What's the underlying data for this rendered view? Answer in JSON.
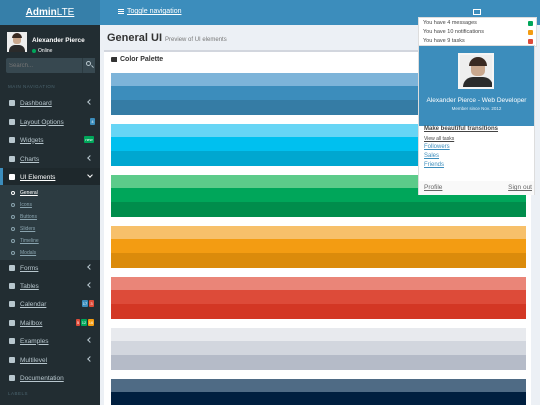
{
  "logo": {
    "bold": "Admin",
    "rest": "LTE"
  },
  "topbar": {
    "toggle_label": "Toggle navigation",
    "mail_icon": "envelope-icon"
  },
  "user_panel": {
    "name": "Alexander Pierce",
    "status": "Online"
  },
  "search": {
    "placeholder": "Search..."
  },
  "sidebar": {
    "header_main": "MAIN NAVIGATION",
    "header_labels": "LABELS",
    "items": [
      {
        "label": "Dashboard",
        "icon": "dashboard-icon"
      },
      {
        "label": "Layout Options",
        "icon": "files-icon",
        "badge": "4"
      },
      {
        "label": "Widgets",
        "icon": "th-icon",
        "badge": "new"
      },
      {
        "label": "Charts",
        "icon": "pie-chart-icon"
      },
      {
        "label": "UI Elements",
        "icon": "laptop-icon"
      },
      {
        "label": "Forms",
        "icon": "edit-icon"
      },
      {
        "label": "Tables",
        "icon": "table-icon"
      },
      {
        "label": "Calendar",
        "icon": "calendar-icon",
        "badges": [
          "17",
          "3"
        ]
      },
      {
        "label": "Mailbox",
        "icon": "envelope-icon",
        "badges": [
          "5",
          "12",
          "16"
        ]
      },
      {
        "label": "Examples",
        "icon": "folder-icon"
      },
      {
        "label": "Multilevel",
        "icon": "share-icon"
      },
      {
        "label": "Documentation",
        "icon": "book-icon"
      }
    ],
    "sub_items": [
      "General",
      "Icons",
      "Buttons",
      "Sliders",
      "Timeline",
      "Modals"
    ]
  },
  "content": {
    "title": "General UI",
    "subtitle": "Preview of UI elements",
    "box_title": "Color Palette"
  },
  "palettes": [
    [
      "#7db4d9",
      "#3c8dbc",
      "#357ca5"
    ],
    [
      "#67d5f5",
      "#00c0ef",
      "#00a7d0"
    ],
    [
      "#5ccb8a",
      "#00a65a",
      "#008d4c"
    ],
    [
      "#f7c06a",
      "#f39c12",
      "#db8b0b"
    ],
    [
      "#ea8578",
      "#dd4b39",
      "#d33724"
    ],
    [
      "#e8eaee",
      "#d2d6de",
      "#b5bbc8"
    ],
    [
      "#4f6b85",
      "#001f3f",
      "#001a35"
    ]
  ],
  "dropdown_top": {
    "lines": [
      "You have 4 messages",
      "You have 10 notifications",
      "You have 9 tasks"
    ],
    "colors": [
      "#00a65a",
      "#f39c12",
      "#dd4b39"
    ]
  },
  "user_menu": {
    "name": "Alexander Pierce - Web Developer",
    "member": "Member since Nov. 2012",
    "links": [
      "Make beautiful transitions",
      "View all tasks",
      "Followers",
      "Sales",
      "Friends"
    ],
    "profile": "Profile",
    "signout": "Sign out"
  }
}
